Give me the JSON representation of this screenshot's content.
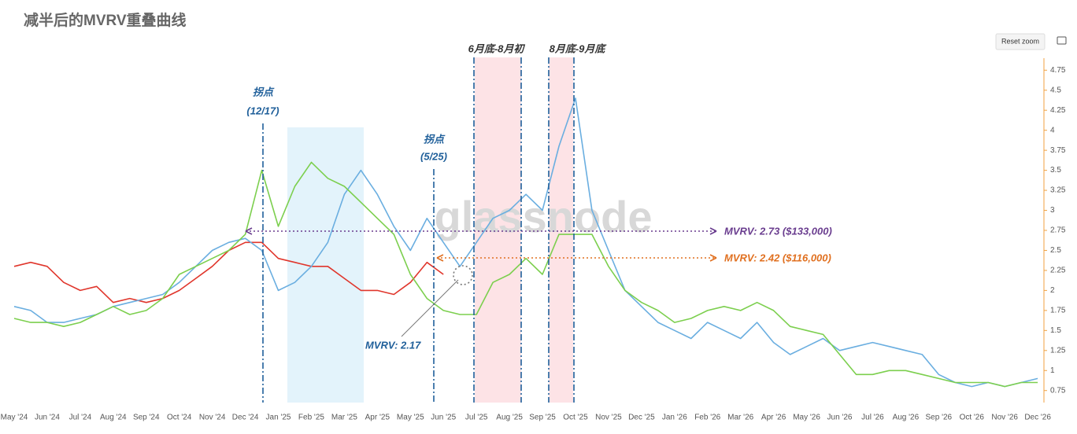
{
  "chart_data": {
    "type": "line",
    "title": "减半后的MVRV重叠曲线",
    "reset_button": "Reset zoom",
    "watermark": "glassnode",
    "annotations": [
      "拐点",
      "(12/17)",
      "拐点",
      "(5/25)",
      "6月底-8月初",
      "8月底-9月底",
      "MVRV: 2.73 ($133,000)",
      "MVRV: 2.42 ($116,000)",
      "MVRV: 2.17"
    ],
    "categories": [
      "May '24",
      null,
      "Jun '24",
      null,
      "Jul '24",
      null,
      "Aug '24",
      null,
      "Sep '24",
      null,
      "Oct '24",
      null,
      "Nov '24",
      null,
      "Dec '24",
      null,
      "Jan '25",
      null,
      "Feb '25",
      null,
      "Mar '25",
      null,
      "Apr '25",
      null,
      "May '25",
      null,
      "Jun '25",
      null,
      "Jul '25",
      null,
      "Aug '25",
      null,
      "Sep '25",
      null,
      "Oct '25",
      null,
      "Nov '25",
      null,
      "Dec '25",
      null,
      "Jan '26",
      null,
      "Feb '26",
      null,
      "Mar '26",
      null,
      "Apr '26",
      null,
      "May '26",
      null,
      "Jun '26",
      null,
      "Jul '26",
      null,
      "Aug '26",
      null,
      "Sep '26",
      null,
      "Oct '26",
      null,
      "Nov '26",
      null,
      "Dec '26"
    ],
    "series": [
      {
        "color": "#e0362c",
        "values": [
          2.3,
          2.35,
          2.3,
          2.1,
          2.0,
          2.05,
          1.85,
          1.9,
          1.85,
          1.9,
          2.0,
          2.15,
          2.3,
          2.5,
          2.6,
          2.6,
          2.4,
          2.35,
          2.3,
          2.3,
          2.15,
          2.0,
          2.0,
          1.95,
          2.1,
          2.35,
          2.2,
          null,
          null,
          null,
          null,
          null,
          null,
          null,
          null,
          null,
          null,
          null,
          null,
          null,
          null,
          null,
          null,
          null,
          null,
          null,
          null,
          null,
          null,
          null,
          null,
          null,
          null,
          null,
          null,
          null,
          null,
          null,
          null,
          null,
          null,
          null,
          null
        ]
      },
      {
        "color": "#6aaee0",
        "values": [
          1.8,
          1.75,
          1.6,
          1.6,
          1.65,
          1.7,
          1.8,
          1.85,
          1.9,
          1.95,
          2.1,
          2.3,
          2.5,
          2.6,
          2.65,
          2.5,
          2.0,
          2.1,
          2.3,
          2.6,
          3.2,
          3.5,
          3.2,
          2.8,
          2.5,
          2.9,
          2.6,
          2.3,
          2.6,
          2.9,
          3.0,
          3.2,
          3.0,
          3.8,
          4.4,
          3.0,
          2.5,
          2.0,
          1.8,
          1.6,
          1.5,
          1.4,
          1.6,
          1.5,
          1.4,
          1.6,
          1.35,
          1.2,
          1.3,
          1.4,
          1.25,
          1.3,
          1.35,
          1.3,
          1.25,
          1.2,
          0.95,
          0.85,
          0.8,
          0.85,
          0.8,
          0.85,
          0.9
        ]
      },
      {
        "color": "#7ccf4e",
        "values": [
          1.65,
          1.6,
          1.6,
          1.55,
          1.6,
          1.7,
          1.8,
          1.7,
          1.75,
          1.9,
          2.2,
          2.3,
          2.4,
          2.5,
          2.7,
          3.5,
          2.8,
          3.3,
          3.6,
          3.4,
          3.3,
          3.1,
          2.9,
          2.7,
          2.2,
          1.9,
          1.75,
          1.7,
          1.7,
          2.1,
          2.2,
          2.4,
          2.2,
          2.7,
          2.7,
          2.7,
          2.3,
          2.0,
          1.85,
          1.75,
          1.6,
          1.65,
          1.75,
          1.8,
          1.75,
          1.85,
          1.75,
          1.55,
          1.5,
          1.45,
          1.2,
          0.95,
          0.95,
          1.0,
          1.0,
          0.95,
          0.9,
          0.85,
          0.85,
          0.85,
          0.8,
          0.85,
          0.85
        ]
      }
    ],
    "ylim": [
      0.6,
      4.9
    ],
    "yticks": [
      0.75,
      1,
      1.25,
      1.5,
      1.75,
      2,
      2.25,
      2.5,
      2.75,
      3,
      3.25,
      3.5,
      3.75,
      4,
      4.25,
      4.5,
      4.75
    ]
  }
}
